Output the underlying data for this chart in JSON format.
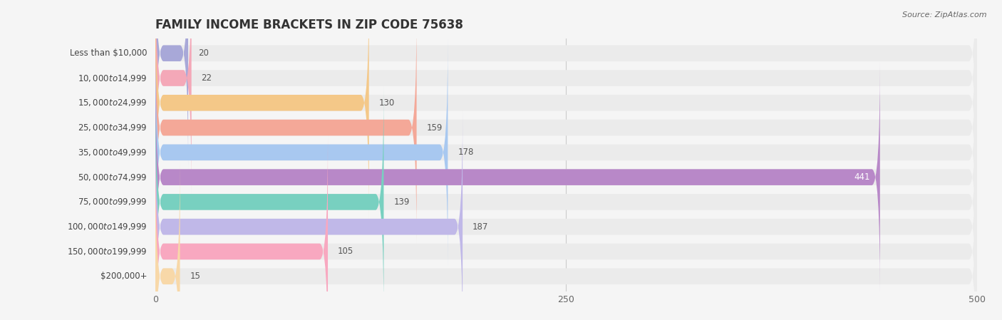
{
  "title": "FAMILY INCOME BRACKETS IN ZIP CODE 75638",
  "source": "Source: ZipAtlas.com",
  "categories": [
    "Less than $10,000",
    "$10,000 to $14,999",
    "$15,000 to $24,999",
    "$25,000 to $34,999",
    "$35,000 to $49,999",
    "$50,000 to $74,999",
    "$75,000 to $99,999",
    "$100,000 to $149,999",
    "$150,000 to $199,999",
    "$200,000+"
  ],
  "values": [
    20,
    22,
    130,
    159,
    178,
    441,
    139,
    187,
    105,
    15
  ],
  "bar_colors": [
    "#a8a8d8",
    "#f4a8b8",
    "#f4c888",
    "#f4a898",
    "#a8c8f0",
    "#b888c8",
    "#78d0c0",
    "#c0b8e8",
    "#f8a8c0",
    "#f8d8a8"
  ],
  "xlim": [
    0,
    500
  ],
  "xticks": [
    0,
    250,
    500
  ],
  "background_color": "#f5f5f5",
  "bar_background_color": "#ebebeb",
  "title_fontsize": 12,
  "label_fontsize": 8.5,
  "value_fontsize": 8.5,
  "bar_height": 0.65
}
